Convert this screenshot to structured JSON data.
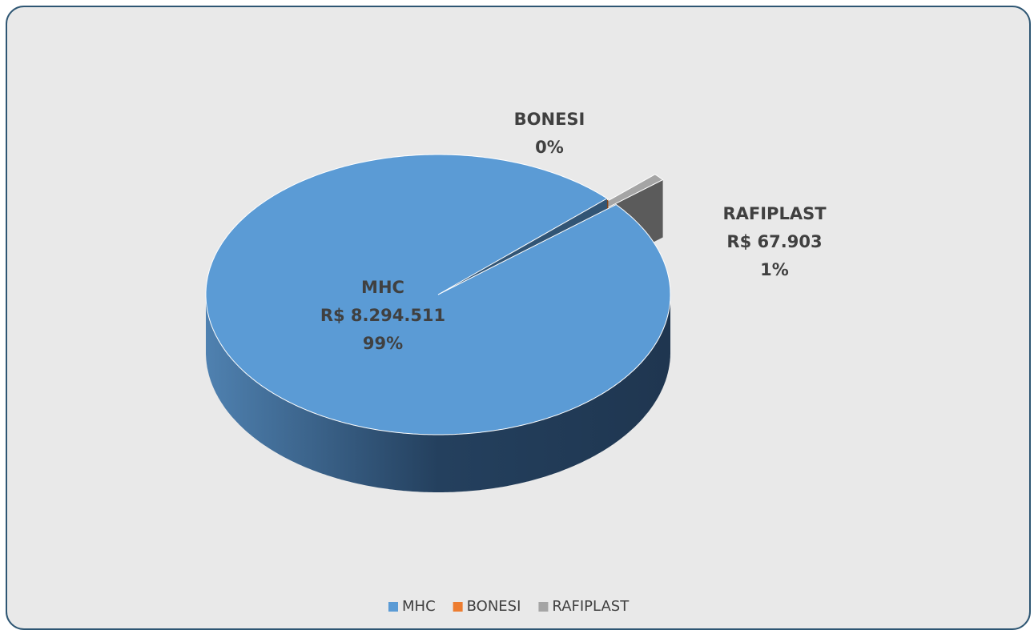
{
  "chart_data": {
    "type": "pie3d",
    "categories": [
      "MHC",
      "BONESI",
      "RAFIPLAST"
    ],
    "values": [
      8294511,
      10000,
      67903
    ],
    "value_labels": [
      "R$ 8.294.511",
      null,
      "R$ 67.903"
    ],
    "percent_labels": [
      "99%",
      "0%",
      "1%"
    ],
    "colors": [
      "#5b9bd5",
      "#ed7d31",
      "#a5a5a5"
    ],
    "exploded": [
      false,
      false,
      true
    ],
    "legend": "bottom"
  }
}
